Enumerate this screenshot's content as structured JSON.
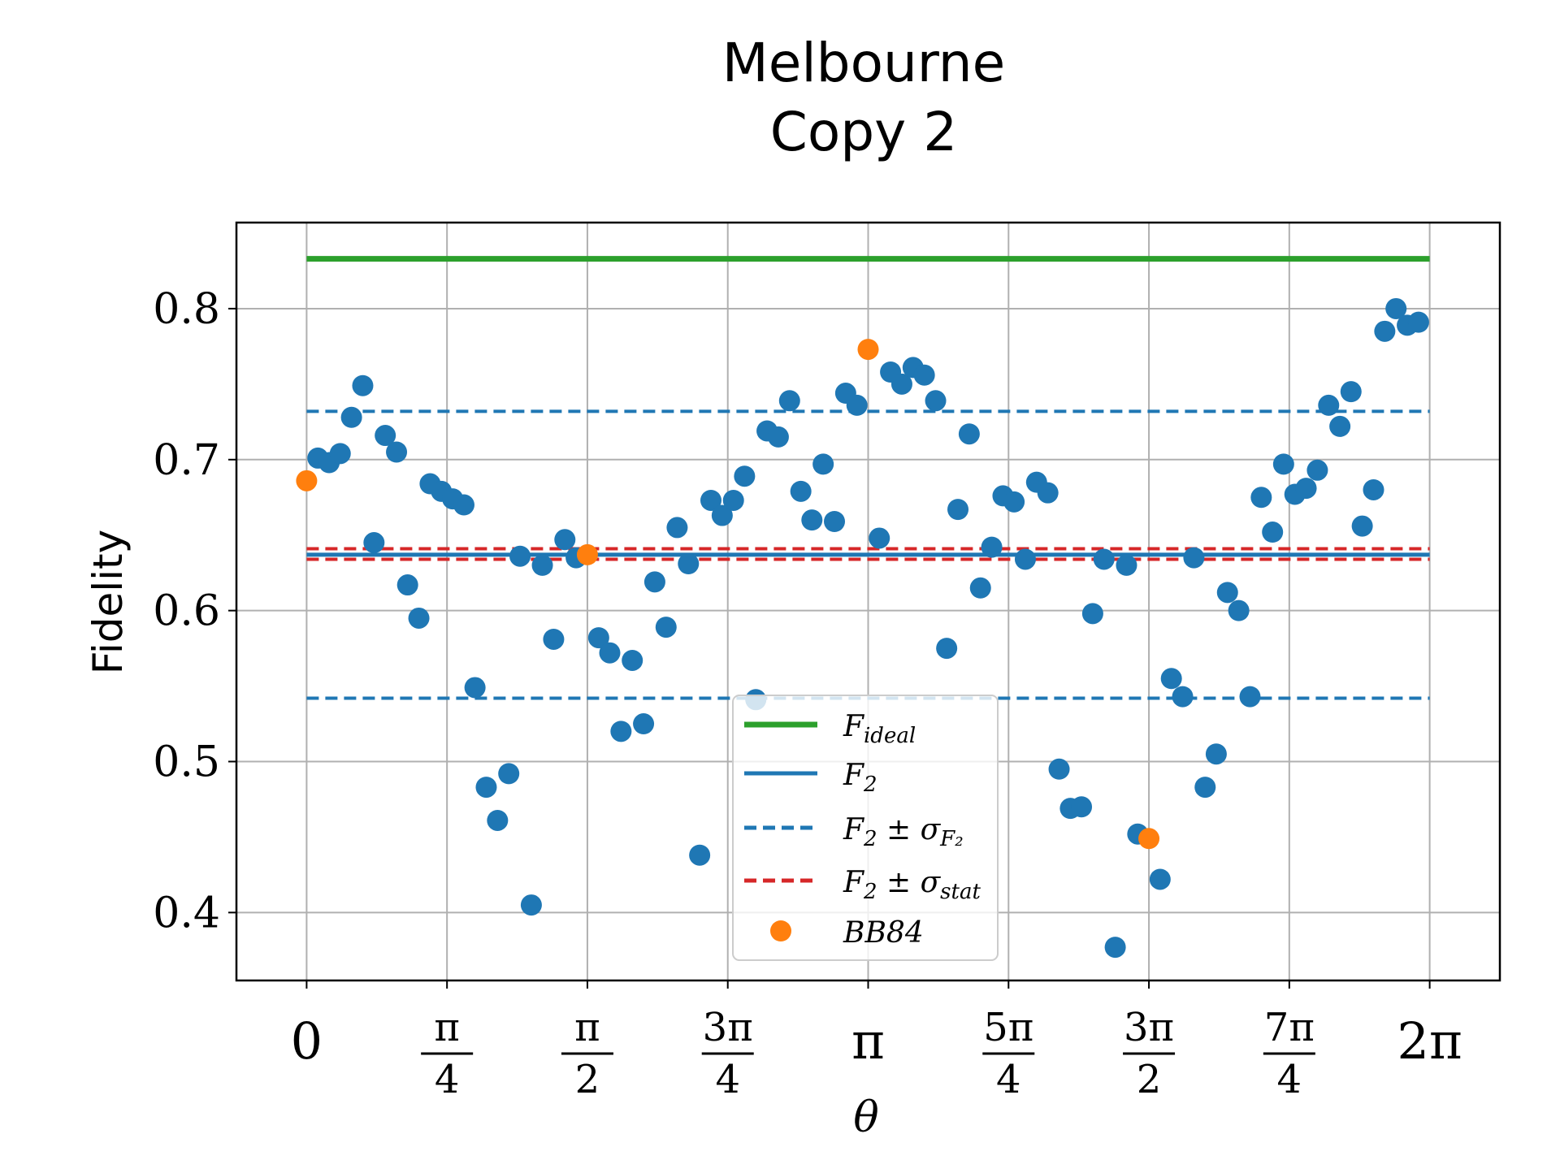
{
  "chart_data": {
    "type": "scatter",
    "title_lines": [
      "Melbourne",
      "Copy 2"
    ],
    "xlabel": "θ",
    "ylabel": "Fidelity",
    "xlim": [
      -0.3927,
      6.6759
    ],
    "ylim": [
      0.355,
      0.857
    ],
    "grid": true,
    "legend_position": "lower-center",
    "x_ticks": [
      {
        "value": 0,
        "num": "0",
        "den": ""
      },
      {
        "value": 0.7854,
        "num": "π",
        "den": "4"
      },
      {
        "value": 1.5708,
        "num": "π",
        "den": "2"
      },
      {
        "value": 2.3562,
        "num": "3π",
        "den": "4"
      },
      {
        "value": 3.1416,
        "num": "π",
        "den": ""
      },
      {
        "value": 3.927,
        "num": "5π",
        "den": "4"
      },
      {
        "value": 4.7124,
        "num": "3π",
        "den": "2"
      },
      {
        "value": 5.4978,
        "num": "7π",
        "den": "4"
      },
      {
        "value": 6.2832,
        "num": "2π",
        "den": ""
      }
    ],
    "y_ticks": [
      {
        "value": 0.4,
        "label": "0.4"
      },
      {
        "value": 0.5,
        "label": "0.5"
      },
      {
        "value": 0.6,
        "label": "0.6"
      },
      {
        "value": 0.7,
        "label": "0.7"
      },
      {
        "value": 0.8,
        "label": "0.8"
      }
    ],
    "lines": [
      {
        "name": "F_ideal",
        "label_main": "F",
        "label_sub": "ideal",
        "y": 0.833,
        "color": "#2ca02c",
        "style": "solid",
        "width": 7,
        "x_range": [
          0,
          6.2832
        ]
      },
      {
        "name": "F_2",
        "label_main": "F",
        "label_sub": "2",
        "y": 0.637,
        "color": "#1f77b4",
        "style": "solid",
        "width": 5,
        "x_range": [
          0,
          6.2832
        ]
      },
      {
        "name": "F_2 ± σ_F2 (upper)",
        "y": 0.732,
        "color": "#1f77b4",
        "style": "dashed",
        "width": 4,
        "x_range": [
          0,
          6.2832
        ]
      },
      {
        "name": "F_2 ± σ_F2 (lower)",
        "y": 0.542,
        "color": "#1f77b4",
        "style": "dashed",
        "width": 4,
        "x_range": [
          0,
          6.2832
        ]
      },
      {
        "name": "F_2 ± σ_stat (upper)",
        "y": 0.641,
        "color": "#d62728",
        "style": "dashed",
        "width": 4,
        "x_range": [
          0,
          6.2832
        ]
      },
      {
        "name": "F_2 ± σ_stat (lower)",
        "y": 0.634,
        "color": "#d62728",
        "style": "dashed",
        "width": 4,
        "x_range": [
          0,
          6.2832
        ]
      }
    ],
    "series": [
      {
        "name": "data",
        "color": "#1f77b4",
        "x": [
          0.063,
          0.126,
          0.188,
          0.251,
          0.314,
          0.377,
          0.44,
          0.503,
          0.565,
          0.628,
          0.691,
          0.754,
          0.817,
          0.88,
          0.942,
          1.005,
          1.068,
          1.131,
          1.194,
          1.257,
          1.319,
          1.382,
          1.445,
          1.508,
          1.634,
          1.696,
          1.759,
          1.822,
          1.885,
          1.948,
          2.011,
          2.073,
          2.136,
          2.199,
          2.262,
          2.325,
          2.388,
          2.45,
          2.513,
          2.576,
          2.639,
          2.702,
          2.765,
          2.827,
          2.89,
          2.953,
          3.016,
          3.079,
          3.204,
          3.267,
          3.33,
          3.393,
          3.456,
          3.519,
          3.581,
          3.644,
          3.707,
          3.77,
          3.833,
          3.896,
          3.958,
          4.021,
          4.084,
          4.147,
          4.21,
          4.273,
          4.335,
          4.398,
          4.461,
          4.524,
          4.587,
          4.65,
          4.775,
          4.838,
          4.901,
          4.964,
          5.027,
          5.089,
          5.152,
          5.215,
          5.278,
          5.341,
          5.404,
          5.466,
          5.529,
          5.592,
          5.655,
          5.718,
          5.781,
          5.843,
          5.906,
          5.969,
          6.032,
          6.095,
          6.158,
          6.221
        ],
        "y": [
          0.701,
          0.698,
          0.704,
          0.728,
          0.749,
          0.645,
          0.716,
          0.705,
          0.617,
          0.595,
          0.684,
          0.679,
          0.674,
          0.67,
          0.549,
          0.483,
          0.461,
          0.492,
          0.636,
          0.405,
          0.63,
          0.581,
          0.647,
          0.635,
          0.582,
          0.572,
          0.52,
          0.567,
          0.525,
          0.619,
          0.589,
          0.655,
          0.631,
          0.438,
          0.673,
          0.663,
          0.673,
          0.689,
          0.541,
          0.719,
          0.715,
          0.739,
          0.679,
          0.66,
          0.697,
          0.659,
          0.744,
          0.736,
          0.648,
          0.758,
          0.75,
          0.761,
          0.756,
          0.739,
          0.575,
          0.667,
          0.717,
          0.615,
          0.642,
          0.676,
          0.672,
          0.634,
          0.685,
          0.678,
          0.495,
          0.469,
          0.47,
          0.598,
          0.634,
          0.377,
          0.63,
          0.452,
          0.422,
          0.555,
          0.543,
          0.635,
          0.483,
          0.505,
          0.612,
          0.6,
          0.543,
          0.675,
          0.652,
          0.697,
          0.677,
          0.681,
          0.693,
          0.736,
          0.722,
          0.745,
          0.656,
          0.68,
          0.785,
          0.8,
          0.789,
          0.791
        ]
      },
      {
        "name": "BB84",
        "label_main": "BB84",
        "color": "#ff7f0e",
        "x": [
          0,
          1.5708,
          3.1416,
          4.7124
        ],
        "y": [
          0.686,
          0.637,
          0.773,
          0.449
        ]
      }
    ],
    "legend": {
      "entries": [
        {
          "type": "line",
          "color": "#2ca02c",
          "style": "solid",
          "main": "F",
          "sub": "ideal",
          "rest": ""
        },
        {
          "type": "line",
          "color": "#1f77b4",
          "style": "solid",
          "main": "F",
          "sub": "2",
          "rest": ""
        },
        {
          "type": "line",
          "color": "#1f77b4",
          "style": "dashed",
          "main": "F",
          "sub": "2",
          "rest": " ± σ",
          "sub2": "F₂"
        },
        {
          "type": "line",
          "color": "#d62728",
          "style": "dashed",
          "main": "F",
          "sub": "2",
          "rest": " ± σ",
          "sub2": "stat"
        },
        {
          "type": "marker",
          "color": "#ff7f0e",
          "main": "BB84",
          "sub": "",
          "rest": ""
        }
      ]
    }
  }
}
